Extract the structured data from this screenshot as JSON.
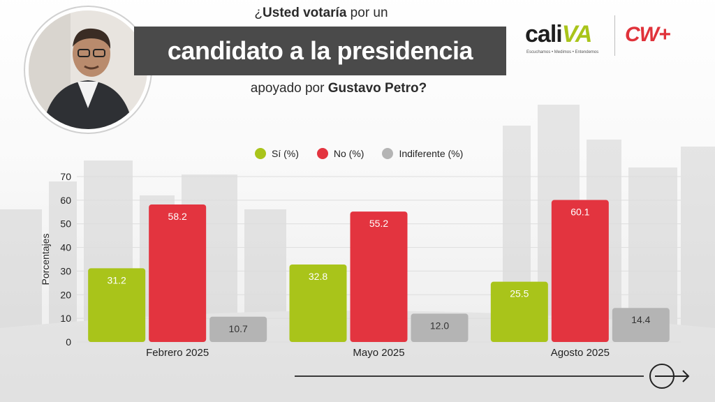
{
  "header": {
    "question_prefix": "¿",
    "question_bold": "Usted votaría",
    "question_rest": " por un",
    "band_text": "candidato a la presidencia",
    "sub_regular": "apoyado por ",
    "sub_bold": "Gustavo Petro?"
  },
  "logos": {
    "caliva_word_a": "cali",
    "caliva_word_b": "VA",
    "caliva_tagline": "Escuchamos • Medimos • Entendemos",
    "cw_text": "CW+"
  },
  "colors": {
    "si": "#a9c41a",
    "no": "#e3343f",
    "indiferente": "#b4b4b4",
    "band": "#4a4a4a"
  },
  "chart_data": {
    "type": "bar",
    "title": "",
    "ylabel": "Porcentajes",
    "xlabel": "",
    "ylim": [
      0,
      70
    ],
    "yticks": [
      0,
      10,
      20,
      30,
      40,
      50,
      60,
      70
    ],
    "grid": true,
    "legend_position": "top",
    "categories": [
      "Febrero 2025",
      "Mayo 2025",
      "Agosto 2025"
    ],
    "series": [
      {
        "name": "Sí (%)",
        "color": "#a9c41a",
        "values": [
          31.2,
          32.8,
          25.5
        ],
        "labels": [
          "31.2",
          "32.8",
          "25.5"
        ]
      },
      {
        "name": "No (%)",
        "color": "#e3343f",
        "values": [
          58.2,
          55.2,
          60.1
        ],
        "labels": [
          "58.2",
          "55.2",
          "60.1"
        ]
      },
      {
        "name": "Indiferente (%)",
        "color": "#b4b4b4",
        "values": [
          10.7,
          12.0,
          14.4
        ],
        "labels": [
          "10.7",
          "12.0",
          "14.4"
        ]
      }
    ]
  },
  "icons": {
    "portrait": "person-portrait",
    "next": "arrow-right-circle-icon"
  }
}
